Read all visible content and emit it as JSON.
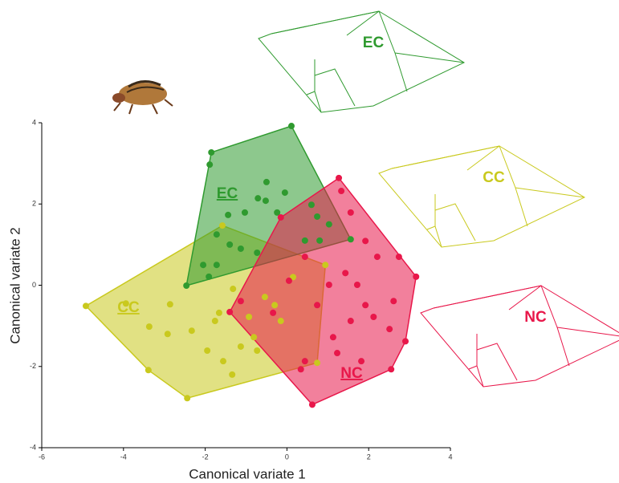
{
  "chart_data": {
    "type": "scatter",
    "x_label": "Canonical variate 1",
    "y_label": "Canonical variate 2",
    "xlim": [
      -6,
      4
    ],
    "ylim": [
      -4,
      4
    ],
    "xticks": [
      -6,
      -4,
      -2,
      0,
      2,
      4
    ],
    "yticks": [
      -4,
      -2,
      0,
      2,
      4
    ],
    "series": [
      {
        "name": "CC",
        "color": "#c9c91e",
        "x": [
          -4.92,
          -2.44,
          0.74,
          0.94,
          -1.58,
          -3.94,
          -2.86,
          -3.37,
          -2.92,
          -2.33,
          -1.95,
          -1.56,
          -1.34,
          -3.39,
          -1.13,
          -0.81,
          -1.66,
          -1.32,
          -0.73,
          -1.76,
          -0.93,
          -0.15,
          -0.54,
          0.15,
          -0.3
        ],
        "values": [
          -0.51,
          -2.78,
          -1.91,
          0.5,
          1.47,
          -0.45,
          -0.47,
          -1.02,
          -1.2,
          -1.12,
          -1.61,
          -1.87,
          -2.2,
          -2.09,
          -1.51,
          -1.28,
          -0.68,
          -0.09,
          -1.61,
          -0.88,
          -0.78,
          -0.88,
          -0.29,
          0.2,
          -0.49
        ]
      },
      {
        "name": "EC",
        "color": "#2f9a2f",
        "x": [
          -1.85,
          0.11,
          1.56,
          -2.46,
          -1.89,
          -0.5,
          -0.71,
          -0.52,
          -1.03,
          -1.44,
          -0.24,
          -0.05,
          -1.4,
          -1.72,
          -1.13,
          -2.05,
          -1.91,
          -0.73,
          0.44,
          0.74,
          1.03,
          0.6,
          0.8,
          -1.72
        ],
        "values": [
          3.27,
          3.92,
          1.13,
          -0.01,
          2.97,
          2.54,
          2.14,
          2.08,
          1.79,
          1.73,
          1.79,
          2.28,
          1.0,
          1.25,
          0.9,
          0.5,
          0.21,
          0.8,
          1.1,
          1.69,
          1.5,
          1.98,
          1.1,
          0.5
        ]
      },
      {
        "name": "NC",
        "color": "#e8174a",
        "x": [
          1.27,
          3.16,
          2.55,
          0.62,
          -1.4,
          -0.15,
          1.33,
          1.56,
          1.92,
          2.21,
          2.74,
          1.43,
          1.03,
          1.92,
          1.56,
          2.12,
          2.51,
          1.13,
          0.44,
          0.34,
          1.82,
          2.9,
          1.23,
          -1.13,
          -0.34,
          0.05,
          0.74,
          0.44,
          1.72,
          2.61
        ],
        "values": [
          2.64,
          0.21,
          -2.07,
          -2.94,
          -0.66,
          1.67,
          2.32,
          1.79,
          1.09,
          0.7,
          0.7,
          0.3,
          0.01,
          -0.49,
          -0.88,
          -0.78,
          -1.08,
          -1.28,
          -1.87,
          -2.07,
          -1.87,
          -1.38,
          -1.67,
          -0.39,
          -0.68,
          0.11,
          -0.49,
          0.7,
          0.01,
          -0.39
        ]
      }
    ]
  }
}
